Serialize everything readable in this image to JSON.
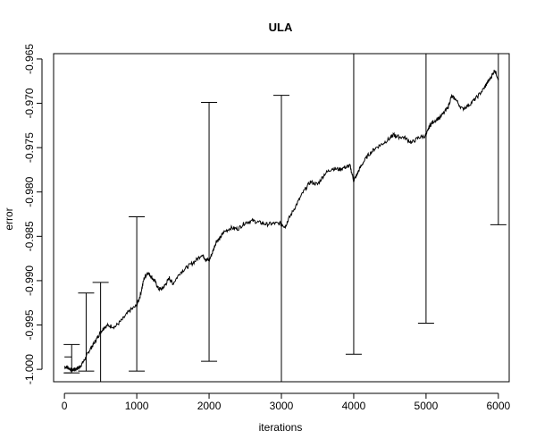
{
  "chart_data": {
    "type": "line",
    "title": "ULA",
    "xlabel": "iterations",
    "ylabel": "error",
    "xlim": [
      -150,
      6150
    ],
    "ylim": [
      -1.0014,
      -0.9644
    ],
    "x_ticks": [
      0,
      1000,
      2000,
      3000,
      4000,
      5000,
      6000
    ],
    "x_tick_labels": [
      "0",
      "1000",
      "2000",
      "3000",
      "4000",
      "5000",
      "6000"
    ],
    "y_ticks": [
      -1.0,
      -0.995,
      -0.99,
      -0.985,
      -0.98,
      -0.975,
      -0.97,
      -0.965
    ],
    "y_tick_labels": [
      "-1.000",
      "-0.995",
      "-0.990",
      "-0.985",
      "-0.980",
      "-0.975",
      "-0.970",
      "-0.965"
    ],
    "grid": false,
    "legend": "none",
    "series": [
      {
        "x": [
          0,
          50,
          100,
          150,
          200,
          250,
          300,
          350,
          400,
          450,
          500,
          550,
          600,
          700,
          800,
          900,
          1000,
          1050,
          1100,
          1150,
          1200,
          1250,
          1300,
          1350,
          1400,
          1450,
          1500,
          1600,
          1700,
          1800,
          1900,
          1950,
          2000,
          2050,
          2100,
          2150,
          2200,
          2300,
          2400,
          2500,
          2600,
          2700,
          2800,
          2900,
          3000,
          3050,
          3100,
          3200,
          3300,
          3400,
          3500,
          3600,
          3700,
          3800,
          3900,
          3950,
          4000,
          4050,
          4100,
          4200,
          4300,
          4400,
          4500,
          4550,
          4600,
          4700,
          4800,
          4900,
          5000,
          5050,
          5100,
          5200,
          5300,
          5350,
          5400,
          5500,
          5600,
          5700,
          5800,
          5850,
          5900,
          5950,
          6000
        ],
        "y": [
          -0.9997,
          -0.9998,
          -1.0001,
          -0.99998,
          -0.9998,
          -0.9993,
          -0.9986,
          -0.9978,
          -0.9972,
          -0.9965,
          -0.9958,
          -0.99525,
          -0.99505,
          -0.9952,
          -0.9944,
          -0.9934,
          -0.9928,
          -0.9916,
          -0.9898,
          -0.98905,
          -0.98955,
          -0.99005,
          -0.9909,
          -0.99095,
          -0.9904,
          -0.9897,
          -0.99035,
          -0.9891,
          -0.98845,
          -0.98785,
          -0.98705,
          -0.98755,
          -0.98775,
          -0.98675,
          -0.98555,
          -0.98525,
          -0.98455,
          -0.98405,
          -0.98415,
          -0.98345,
          -0.98325,
          -0.98345,
          -0.98365,
          -0.98355,
          -0.98355,
          -0.98395,
          -0.98305,
          -0.98155,
          -0.98005,
          -0.97885,
          -0.97915,
          -0.97795,
          -0.97735,
          -0.97745,
          -0.97715,
          -0.97705,
          -0.97875,
          -0.97795,
          -0.97705,
          -0.97585,
          -0.97505,
          -0.97455,
          -0.97395,
          -0.97355,
          -0.97375,
          -0.97385,
          -0.97445,
          -0.97385,
          -0.97365,
          -0.97255,
          -0.97205,
          -0.97155,
          -0.97055,
          -0.96925,
          -0.96945,
          -0.97065,
          -0.97015,
          -0.96935,
          -0.96835,
          -0.96765,
          -0.96705,
          -0.96625,
          -0.96725
        ]
      }
    ],
    "error_bars": [
      {
        "x": 100,
        "low": -1.0004,
        "high": -0.9972
      },
      {
        "x": 300,
        "low": -1.0002,
        "high": -0.9914
      },
      {
        "x": 500,
        "low": -1.0014,
        "high": -0.9902
      },
      {
        "x": 1000,
        "low": -1.0002,
        "high": -0.9828
      },
      {
        "x": 2000,
        "low": -0.9991,
        "high": -0.9699
      },
      {
        "x": 3000,
        "low": -1.0015,
        "high": -0.9691
      },
      {
        "x": 4000,
        "low": -0.9983,
        "high": -0.9644
      },
      {
        "x": 5000,
        "low": -0.9948,
        "high": -0.9644
      },
      {
        "x": 6000,
        "low": -0.9837,
        "high": -0.9644
      }
    ],
    "extra_segments": [
      {
        "x": [
          0,
          100
        ],
        "y": [
          -0.9986,
          -0.9986
        ]
      },
      {
        "x": [
          0,
          100
        ],
        "y": [
          -1.0004,
          -1.0004
        ]
      }
    ]
  }
}
